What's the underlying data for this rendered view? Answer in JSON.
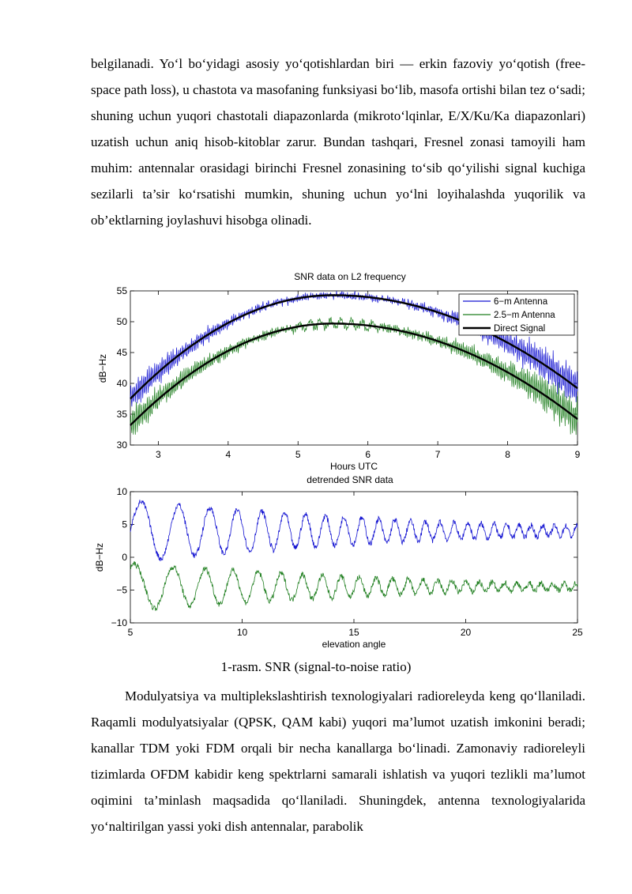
{
  "paragraphs": {
    "p1": "belgilanadi. Yo‘l bo‘yidagi asosiy yo‘qotishlardan biri — erkin fazoviy yo‘qotish (free-space path loss), u chastota va masofaning funksiyasi bo‘lib, masofa ortishi bilan tez o‘sadi; shuning uchun yuqori chastotali diapazonlarda (mikroto‘lqinlar, E/X/Ku/Ka diapazonlari) uzatish uchun aniq hisob-kitoblar zarur. Bundan tashqari, Fresnel zonasi tamoyili ham muhim: antennalar orasidagi birinchi Fresnel zonasining to‘sib qo‘yilishi signal kuchiga sezilarli ta’sir ko‘rsatishi mumkin, shuning uchun yo‘lni loyihalashda yuqorilik va ob’ektlarning joylashuvi hisobga olinadi.",
    "p2": "Modulyatsiya va multiplekslashtirish texnologiyalari radioreleyda keng qo‘llaniladi. Raqamli modulyatsiyalar (QPSK, QAM kabi) yuqori ma’lumot uzatish imkonini beradi; kanallar TDM yoki FDM orqali bir necha kanallarga bo‘linadi. Zamonaviy radioreleyli tizimlarda OFDM kabidir keng spektrlarni samarali ishlatish va yuqori tezlikli ma’lumot oqimini ta’minlash maqsadida qo‘llaniladi. Shuningdek, antenna texnologiyalarida yo‘naltirilgan yassi yoki dish antennalar, parabolik"
  },
  "figure_caption": "1-rasm. SNR (signal-to-noise ratio)",
  "colors": {
    "blue": "#1414d2",
    "green": "#1e7e1e",
    "black": "#000000"
  },
  "chart_data": [
    {
      "type": "line",
      "title": "SNR data on L2 frequency",
      "xlabel": "Hours UTC",
      "ylabel": "dB−Hz",
      "xlim": [
        2.6,
        9.0
      ],
      "ylim": [
        30,
        55
      ],
      "xticks": [
        "3",
        "4",
        "5",
        "6",
        "7",
        "8",
        "9"
      ],
      "yticks": [
        "30",
        "35",
        "40",
        "45",
        "50",
        "55"
      ],
      "legend_position": "top-right",
      "grid": false,
      "series": [
        {
          "name": "6−m Antenna",
          "color": "#1414d2",
          "style": "noisy",
          "direct_peak": 54.3,
          "direct_start": 37.5,
          "direct_end": 39.2,
          "x": [
            2.6,
            3.0,
            4.0,
            5.0,
            5.5,
            6.0,
            7.0,
            8.0,
            9.0
          ],
          "y": [
            37.5,
            41.0,
            49.0,
            53.6,
            54.5,
            54.1,
            50.5,
            45.5,
            39.2
          ]
        },
        {
          "name": "2.5−m Antenna",
          "color": "#1e7e1e",
          "style": "noisy",
          "direct_peak": 49.7,
          "direct_start": 33.2,
          "direct_end": 34.2,
          "x": [
            2.6,
            3.0,
            4.0,
            5.0,
            5.5,
            6.0,
            7.0,
            8.0,
            9.0
          ],
          "y": [
            33.0,
            36.0,
            44.0,
            48.5,
            49.7,
            49.4,
            46.0,
            41.0,
            34.2
          ]
        },
        {
          "name": "Direct Signal",
          "color": "#000000",
          "style": "smooth"
        }
      ]
    },
    {
      "type": "line",
      "title": "detrended SNR data",
      "xlabel": "elevation angle",
      "ylabel": "dB−Hz",
      "xlim": [
        5,
        25
      ],
      "ylim": [
        -10,
        10
      ],
      "xticks": [
        "5",
        "10",
        "15",
        "20",
        "25"
      ],
      "yticks": [
        "−10",
        "−5",
        "0",
        "5",
        "10"
      ],
      "grid": false,
      "series": [
        {
          "color": "#1414d2",
          "offset": 4,
          "amp_start": 3.8,
          "amp_end": 0.8
        },
        {
          "color": "#1e7e1e",
          "offset": -4.5,
          "amp_start": 3.0,
          "amp_end": 0.5
        }
      ]
    }
  ]
}
